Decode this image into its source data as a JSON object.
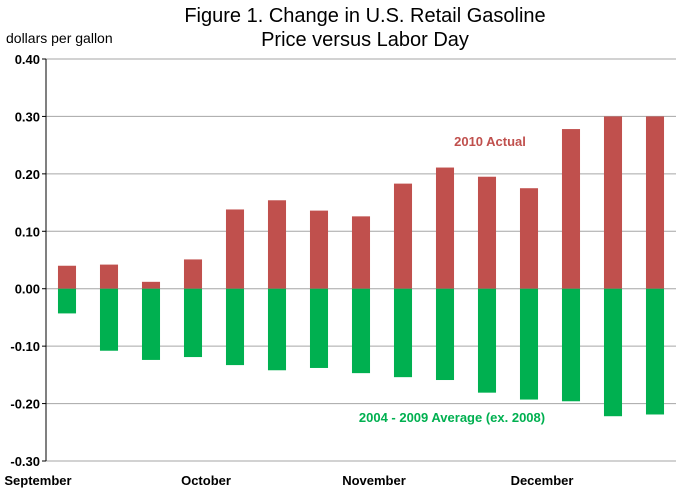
{
  "chart_data": {
    "type": "bar",
    "title_line1": "Figure 1. Change in U.S. Retail Gasoline",
    "title_line2": "Price versus Labor Day",
    "ylabel": "dollars per gallon",
    "xlabel": "",
    "ylim": [
      -0.3,
      0.4
    ],
    "yticks": [
      "0.40",
      "0.30",
      "0.20",
      "0.10",
      "0.00",
      "-0.10",
      "-0.20",
      "-0.30"
    ],
    "ytick_values": [
      0.4,
      0.3,
      0.2,
      0.1,
      0.0,
      -0.1,
      -0.2,
      -0.3
    ],
    "x_month_labels": [
      "September",
      "October",
      "November",
      "December"
    ],
    "grid": true,
    "series": [
      {
        "name": "2010 Actual",
        "color": "#c0504d",
        "values": [
          0.04,
          0.042,
          0.012,
          0.051,
          0.138,
          0.154,
          0.136,
          0.126,
          0.183,
          0.211,
          0.195,
          0.175,
          0.278,
          0.3,
          0.3
        ]
      },
      {
        "name": "2004 - 2009 Average (ex. 2008)",
        "color": "#00b050",
        "values": [
          -0.043,
          -0.108,
          -0.124,
          -0.119,
          -0.133,
          -0.142,
          -0.138,
          -0.147,
          -0.154,
          -0.159,
          -0.181,
          -0.193,
          -0.196,
          -0.222,
          -0.219
        ]
      }
    ],
    "annotations": [
      {
        "text": "2010 Actual",
        "color": "#c0504d"
      },
      {
        "text": "2004 - 2009 Average (ex. 2008)",
        "color": "#00b050"
      }
    ]
  }
}
